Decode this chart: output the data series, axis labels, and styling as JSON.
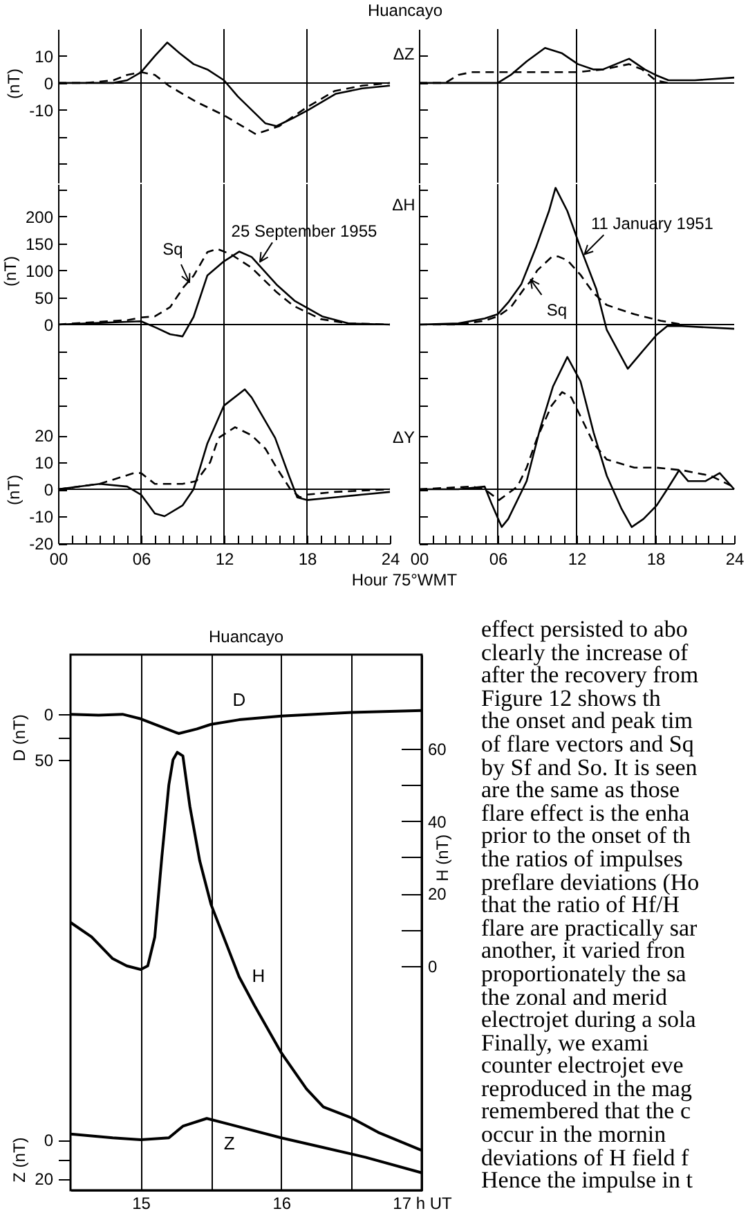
{
  "chart_data": [
    {
      "type": "line",
      "title": "Huancayo",
      "ylabel": "(nT)",
      "xlim": [
        0,
        24
      ],
      "ylim": [
        -37,
        20
      ],
      "yticks": [
        {
          "value": -30,
          "label": null
        },
        {
          "value": -20,
          "label": null
        },
        -10,
        0,
        10
      ],
      "tick_labels": "y",
      "ref_lines": [
        {
          "axis": "x",
          "value": 6
        },
        {
          "axis": "x",
          "value": 12
        },
        {
          "axis": "x",
          "value": 18
        },
        {
          "axis": "y",
          "value": 0
        }
      ],
      "series": [
        {
          "color": "#000000",
          "line_style": "solid",
          "x": [
            0,
            2,
            4,
            5,
            6,
            7,
            7.9,
            8.8,
            9.8,
            10.8,
            12,
            13,
            14,
            15,
            15.8,
            17,
            18.1,
            20.1,
            22,
            24
          ],
          "values": [
            0,
            0,
            0,
            1,
            4,
            10,
            15,
            11,
            7,
            5,
            1,
            -5,
            -10,
            -15,
            -16,
            -13,
            -10,
            -4,
            -2,
            -1
          ]
        },
        {
          "color": "#000000",
          "line_style": "dashed",
          "x": [
            0,
            2,
            4,
            5,
            6,
            7,
            8,
            10,
            12,
            14.3,
            16,
            18,
            20,
            22,
            24
          ],
          "values": [
            0,
            0,
            1,
            3,
            4,
            3,
            -1,
            -7,
            -12,
            -19,
            -16,
            -9,
            -3,
            -1,
            0
          ]
        }
      ]
    },
    {
      "type": "line",
      "xlim": [
        0,
        24
      ],
      "ylim": [
        -37,
        20
      ],
      "yticks": [
        {
          "value": -30,
          "label": null
        },
        {
          "value": -20,
          "label": null
        },
        -10,
        0,
        10
      ],
      "tick_labels": false,
      "annotations": [
        "ΔZ"
      ],
      "ref_lines": [
        {
          "axis": "x",
          "value": 6
        },
        {
          "axis": "x",
          "value": 12
        },
        {
          "axis": "x",
          "value": 18
        },
        {
          "axis": "y",
          "value": 0
        }
      ],
      "series": [
        {
          "color": "#000000",
          "line_style": "solid",
          "x": [
            0,
            3,
            6,
            7,
            8.2,
            9.6,
            10.9,
            12.1,
            13.3,
            14,
            16,
            17.2,
            18,
            19,
            21,
            24
          ],
          "values": [
            0,
            0,
            0,
            3,
            8,
            13,
            11,
            7,
            5,
            5,
            9,
            5,
            3,
            1,
            1,
            2
          ]
        },
        {
          "color": "#000000",
          "line_style": "dashed",
          "x": [
            0,
            2,
            3,
            4,
            6,
            9,
            12,
            14,
            16,
            17,
            18,
            19
          ],
          "values": [
            0,
            0,
            3,
            4,
            4,
            4,
            4,
            5,
            7,
            5,
            1,
            0
          ]
        }
      ]
    },
    {
      "type": "line",
      "ylabel": "(nT)",
      "xlim": [
        0,
        24
      ],
      "ylim": [
        -150,
        260
      ],
      "yticks": [
        {
          "value": 250,
          "label": null
        },
        200,
        150,
        100,
        50,
        0,
        {
          "value": -50,
          "label": null
        },
        {
          "value": -100,
          "label": null
        },
        {
          "value": -150,
          "label": null
        }
      ],
      "tick_labels": "y",
      "annotations": [
        {
          "text": "Sq",
          "x": 9.5,
          "y": 78
        },
        {
          "text": "25 September 1955",
          "x": 14.6,
          "y": 116
        }
      ],
      "ref_lines": [
        {
          "axis": "x",
          "value": 6
        },
        {
          "axis": "x",
          "value": 12
        },
        {
          "axis": "x",
          "value": 18
        },
        {
          "axis": "y",
          "value": 0
        }
      ],
      "series": [
        {
          "color": "#000000",
          "line_style": "solid",
          "x": [
            0,
            3,
            5,
            6,
            7.1,
            8.1,
            9,
            9.8,
            10.8,
            12,
            13.1,
            14,
            15.8,
            17.1,
            19.1,
            21,
            24
          ],
          "values": [
            0,
            3,
            5,
            6,
            -6,
            -18,
            -22,
            14,
            91,
            117,
            135,
            125,
            74,
            44,
            15,
            2,
            0
          ]
        },
        {
          "color": "#000000",
          "line_style": "dashed",
          "x": [
            0,
            3,
            5,
            6,
            7,
            8.1,
            9.1,
            9.8,
            10.8,
            11.5,
            12.5,
            14,
            15.8,
            17,
            19,
            21,
            24
          ],
          "values": [
            0,
            5,
            8,
            13,
            15,
            32,
            70,
            90,
            134,
            140,
            130,
            105,
            60,
            35,
            10,
            2,
            0
          ]
        }
      ]
    },
    {
      "type": "line",
      "xlim": [
        0,
        24
      ],
      "ylim": [
        -150,
        260
      ],
      "yticks": [
        {
          "value": 250,
          "label": null
        },
        200,
        150,
        100,
        50,
        0,
        {
          "value": -50,
          "label": null
        },
        {
          "value": -100,
          "label": null
        },
        {
          "value": -150,
          "label": null
        }
      ],
      "tick_labels": false,
      "annotations": [
        "ΔH",
        {
          "text": "11 January 1951",
          "x": 12.6,
          "y": 130
        },
        {
          "text": "Sq",
          "x": 8.5,
          "y": 83
        }
      ],
      "ref_lines": [
        {
          "axis": "x",
          "value": 6
        },
        {
          "axis": "x",
          "value": 12
        },
        {
          "axis": "x",
          "value": 18
        },
        {
          "axis": "y",
          "value": 0
        }
      ],
      "series": [
        {
          "color": "#000000",
          "line_style": "solid",
          "x": [
            0,
            3,
            5,
            6,
            6.8,
            7.8,
            8.9,
            9.9,
            10.4,
            11.3,
            12.3,
            13.5,
            14.3,
            15.9,
            16.9,
            18.1,
            18.9,
            20,
            24
          ],
          "values": [
            0,
            2,
            11,
            19,
            41,
            75,
            142,
            210,
            253,
            210,
            142,
            66,
            -10,
            -82,
            -53,
            -19,
            -3,
            -3,
            -8
          ]
        },
        {
          "color": "#000000",
          "line_style": "dashed",
          "x": [
            0,
            3,
            5,
            6,
            7,
            8,
            8.6,
            9,
            10.1,
            10.6,
            11.3,
            12.3,
            13.3,
            14.3,
            16.4,
            18.4,
            20
          ],
          "values": [
            0,
            0,
            7,
            15,
            32,
            66,
            83,
            100,
            125,
            126,
            119,
            92,
            58,
            36,
            19,
            7,
            0
          ]
        }
      ]
    },
    {
      "type": "line",
      "ylabel": "(nT)",
      "xlabel": "Hour 75°WMT",
      "xlim": [
        0,
        24
      ],
      "ylim": [
        -20,
        50
      ],
      "yticks": [
        20,
        10,
        0,
        -10,
        -20
      ],
      "xticks": [
        {
          "value": 0,
          "label": "00"
        },
        {
          "value": 1,
          "label": null
        },
        {
          "value": 2,
          "label": null
        },
        {
          "value": 3,
          "label": null
        },
        {
          "value": 4,
          "label": null
        },
        {
          "value": 5,
          "label": null
        },
        {
          "value": 6,
          "label": "06"
        },
        {
          "value": 7,
          "label": null
        },
        {
          "value": 8,
          "label": null
        },
        {
          "value": 9,
          "label": null
        },
        {
          "value": 10,
          "label": null
        },
        {
          "value": 11,
          "label": null
        },
        {
          "value": 12,
          "label": "12"
        },
        {
          "value": 13,
          "label": null
        },
        {
          "value": 14,
          "label": null
        },
        {
          "value": 15,
          "label": null
        },
        {
          "value": 16,
          "label": null
        },
        {
          "value": 17,
          "label": null
        },
        {
          "value": 18,
          "label": "18"
        },
        {
          "value": 19,
          "label": null
        },
        {
          "value": 20,
          "label": null
        },
        {
          "value": 21,
          "label": null
        },
        {
          "value": 22,
          "label": null
        },
        {
          "value": 23,
          "label": null
        },
        {
          "value": 24,
          "label": "24"
        }
      ],
      "ref_lines": [
        {
          "axis": "x",
          "value": 6
        },
        {
          "axis": "x",
          "value": 12
        },
        {
          "axis": "x",
          "value": 18
        },
        {
          "axis": "y",
          "value": 0
        }
      ],
      "series": [
        {
          "color": "#000000",
          "line_style": "solid",
          "x": [
            0,
            3,
            5,
            6,
            7,
            7.7,
            9,
            9.8,
            10.8,
            12,
            13.5,
            14,
            15.7,
            16.7,
            17.3,
            18,
            20,
            22,
            24
          ],
          "values": [
            0,
            2,
            1,
            -2,
            -9,
            -10,
            -6,
            0,
            17,
            31,
            37,
            34,
            19,
            5,
            -3,
            -4,
            -3,
            -2,
            -1
          ]
        },
        {
          "color": "#000000",
          "line_style": "dashed",
          "x": [
            0,
            3,
            5.5,
            6,
            7,
            9,
            10,
            11,
            11.6,
            12.8,
            14,
            15,
            15.8,
            16.8,
            17.5,
            18,
            20,
            24
          ],
          "values": [
            0,
            2,
            6,
            6,
            2,
            2,
            3,
            10,
            19,
            23,
            20,
            15,
            8,
            0,
            -3,
            -2,
            -1,
            0
          ]
        }
      ]
    },
    {
      "type": "line",
      "xlim": [
        0,
        24
      ],
      "ylim": [
        -20,
        50
      ],
      "yticks": [
        20,
        10,
        0,
        -10,
        -20
      ],
      "tick_labels": "x",
      "annotations": [
        "ΔY"
      ],
      "xticks": [
        {
          "value": 0,
          "label": "00"
        },
        {
          "value": 1,
          "label": null
        },
        {
          "value": 2,
          "label": null
        },
        {
          "value": 3,
          "label": null
        },
        {
          "value": 4,
          "label": null
        },
        {
          "value": 5,
          "label": null
        },
        {
          "value": 6,
          "label": "06"
        },
        {
          "value": 7,
          "label": null
        },
        {
          "value": 8,
          "label": null
        },
        {
          "value": 9,
          "label": null
        },
        {
          "value": 10,
          "label": null
        },
        {
          "value": 11,
          "label": null
        },
        {
          "value": 12,
          "label": "12"
        },
        {
          "value": 13,
          "label": null
        },
        {
          "value": 14,
          "label": null
        },
        {
          "value": 15,
          "label": null
        },
        {
          "value": 16,
          "label": null
        },
        {
          "value": 17,
          "label": null
        },
        {
          "value": 18,
          "label": "18"
        },
        {
          "value": 19,
          "label": null
        },
        {
          "value": 20,
          "label": null
        },
        {
          "value": 21,
          "label": null
        },
        {
          "value": 22,
          "label": null
        },
        {
          "value": 23,
          "label": null
        },
        {
          "value": 24,
          "label": "24"
        }
      ],
      "ref_lines": [
        {
          "axis": "x",
          "value": 6
        },
        {
          "axis": "x",
          "value": 12
        },
        {
          "axis": "x",
          "value": 18
        },
        {
          "axis": "y",
          "value": 0
        }
      ],
      "series": [
        {
          "color": "#000000",
          "line_style": "solid",
          "x": [
            0,
            3,
            5,
            5.5,
            6.3,
            6.8,
            8.2,
            9.2,
            10.2,
            11.3,
            12.3,
            13.3,
            14.3,
            15.4,
            16.2,
            17.1,
            18.1,
            18.9,
            19.8,
            20.5,
            21.8,
            22.9,
            24
          ],
          "values": [
            0,
            0,
            1,
            -5,
            -14,
            -11,
            3,
            22,
            38,
            49,
            40,
            21,
            5,
            -7,
            -14,
            -11,
            -6,
            0,
            7,
            3,
            3,
            6,
            0
          ]
        },
        {
          "color": "#000000",
          "line_style": "dashed",
          "x": [
            0,
            4,
            5,
            6.1,
            7.5,
            8.2,
            9,
            10.1,
            10.9,
            11.6,
            12.3,
            13.3,
            14.3,
            16.4,
            18.1,
            20.1,
            22.2,
            23.9
          ],
          "values": [
            0,
            1,
            0,
            -4,
            1,
            8,
            19,
            31,
            36,
            34,
            27,
            17,
            11,
            8,
            8,
            7,
            5,
            1
          ]
        }
      ]
    },
    {
      "type": "line",
      "title": "Huancayo",
      "xlim": [
        14.5,
        17
      ],
      "xticks": [
        15,
        {
          "value": 15.5,
          "label": null
        },
        16,
        {
          "value": 16.5,
          "label": null
        },
        {
          "value": 17,
          "label": "17 h UT"
        }
      ],
      "grid": "x",
      "ylabel": "D (nT)",
      "ylim": [
        519,
        -65
      ],
      "yticks": [
        0,
        {
          "value": 25,
          "label": null
        },
        50
      ],
      "y2label": "H (nT)",
      "y2lim": [
        -62,
        86
      ],
      "y2ticks": [
        0,
        {
          "value": 10,
          "label": null
        },
        20,
        {
          "value": 30,
          "label": null
        },
        40,
        {
          "value": 50,
          "label": null
        },
        60
      ],
      "y3label": "Z (nT)",
      "y3lim": [
        26,
        -250
      ],
      "y3ticks": [
        0,
        {
          "value": 10,
          "label": null
        },
        20
      ],
      "series": [
        {
          "name": "D",
          "color": "#000000",
          "x": [
            14.5,
            14.7,
            14.87,
            15,
            15.15,
            15.27,
            15.4,
            15.5,
            15.7,
            16,
            16.5,
            17
          ],
          "values": [
            0,
            1,
            0,
            5,
            14,
            21,
            16,
            11,
            6,
            2,
            -2,
            -4
          ]
        },
        {
          "name": "H",
          "color": "#000000",
          "axis": "y2",
          "x": [
            14.5,
            14.65,
            14.8,
            14.9,
            15,
            15.05,
            15.1,
            15.15,
            15.2,
            15.23,
            15.26,
            15.3,
            15.35,
            15.42,
            15.5,
            15.6,
            15.7,
            15.81,
            16,
            16.18,
            16.3,
            16.5,
            16.69,
            17
          ],
          "values": [
            12,
            8,
            2,
            0,
            -1,
            0,
            8,
            30,
            50,
            57,
            59,
            58,
            44,
            29,
            17,
            7,
            -3,
            -11,
            -24,
            -34,
            -39,
            -42,
            -46,
            -51
          ]
        },
        {
          "name": "Z",
          "color": "#000000",
          "axis": "y3",
          "x": [
            14.5,
            14.8,
            15,
            15.2,
            15.3,
            15.47,
            15.63,
            16,
            16.3,
            16.6,
            17
          ],
          "values": [
            -3,
            -1,
            0,
            -1,
            -7,
            -11,
            -8,
            -1,
            4,
            9,
            17
          ]
        }
      ]
    },
    {
      "type": "other",
      "annotations": [
        "effect persisted to abo",
        "clearly the increase of",
        "after the recovery from",
        "Figure 12 shows th",
        "the onset and peak tim",
        "of flare vectors and Sq",
        "by Sf and So. It is seen",
        "are the same as those",
        "flare effect is the enha",
        "prior to the onset of th",
        "the ratios of impulses",
        "preflare deviations (Ho",
        "that the ratio of Hf/H",
        "flare are practically sar",
        "another, it varied fron",
        "proportionately the sa",
        "the zonal and merid",
        "electrojet during a sola",
        "Finally, we exami",
        "counter electrojet eve",
        "reproduced in the mag",
        "remembered that the c",
        "occur in the mornin",
        "deviations of H field f",
        "Hence the impulse in t"
      ]
    }
  ]
}
